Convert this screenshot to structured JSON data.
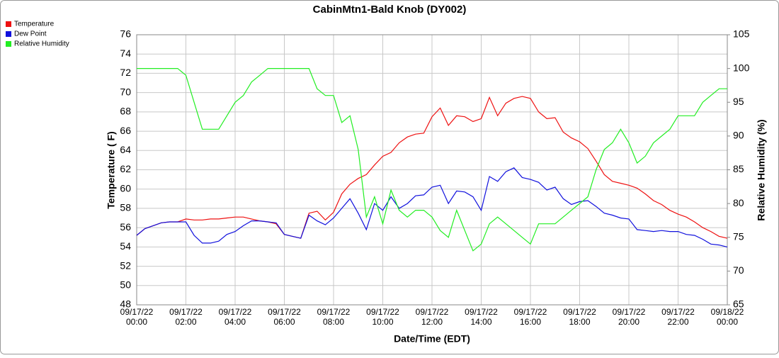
{
  "chart_data": {
    "type": "line",
    "title": "CabinMtn1-Bald Knob (DY002)",
    "x_label": "Date/Time (EDT)",
    "y_label": "Temperature ( F)",
    "y2_label": "Relative Humidity (%)",
    "x": [
      0,
      20,
      40,
      60,
      80,
      100,
      120,
      140,
      160,
      180,
      200,
      220,
      240,
      260,
      280,
      300,
      320,
      340,
      360,
      380,
      400,
      420,
      440,
      460,
      480,
      500,
      520,
      540,
      560,
      580,
      600,
      620,
      640,
      660,
      680,
      700,
      720,
      740,
      760,
      780,
      800,
      820,
      840,
      860,
      880,
      900,
      920,
      940,
      960,
      980,
      1000,
      1020,
      1040,
      1060,
      1080,
      1100,
      1120,
      1140,
      1160,
      1180,
      1200,
      1220,
      1240,
      1260,
      1280,
      1300,
      1320,
      1340,
      1360,
      1380,
      1400,
      1420,
      1440
    ],
    "xlim": [
      0,
      1440
    ],
    "xticks": [
      {
        "value": 0,
        "label": "09/17/22 00:00"
      },
      {
        "value": 120,
        "label": "09/17/22 02:00"
      },
      {
        "value": 240,
        "label": "09/17/22 04:00"
      },
      {
        "value": 360,
        "label": "09/17/22 06:00"
      },
      {
        "value": 480,
        "label": "09/17/22 08:00"
      },
      {
        "value": 600,
        "label": "09/17/22 10:00"
      },
      {
        "value": 720,
        "label": "09/17/22 12:00"
      },
      {
        "value": 840,
        "label": "09/17/22 14:00"
      },
      {
        "value": 960,
        "label": "09/17/22 16:00"
      },
      {
        "value": 1080,
        "label": "09/17/22 18:00"
      },
      {
        "value": 1200,
        "label": "09/17/22 20:00"
      },
      {
        "value": 1320,
        "label": "09/17/22 22:00"
      },
      {
        "value": 1440,
        "label": "09/18/22 00:00"
      }
    ],
    "ylim": [
      48,
      76
    ],
    "yticks": [
      48,
      50,
      52,
      54,
      56,
      58,
      60,
      62,
      64,
      66,
      68,
      70,
      72,
      74,
      76
    ],
    "y2lim": [
      65,
      105
    ],
    "y2ticks": [
      65,
      70,
      75,
      80,
      85,
      90,
      95,
      100,
      105
    ],
    "grid": true,
    "legend": "top-left",
    "series": [
      {
        "name": "Temperature",
        "color": "#ee1111",
        "values": [
          55.2,
          55.9,
          56.2,
          56.5,
          56.6,
          56.6,
          56.9,
          56.8,
          56.8,
          56.9,
          56.9,
          57.0,
          57.1,
          57.1,
          56.9,
          56.7,
          56.6,
          56.4,
          55.3,
          55.1,
          54.9,
          57.5,
          57.7,
          56.8,
          57.6,
          59.5,
          60.5,
          61.1,
          61.5,
          62.5,
          63.4,
          63.8,
          64.8,
          65.4,
          65.7,
          65.8,
          67.5,
          68.4,
          66.6,
          67.6,
          67.5,
          67.0,
          67.3,
          69.5,
          67.6,
          68.9,
          69.4,
          69.6,
          69.4,
          68.0,
          67.3,
          67.4,
          65.9,
          65.3,
          64.9,
          64.2,
          62.9,
          61.5,
          60.8,
          60.6,
          60.4,
          60.1,
          59.5,
          58.8,
          58.4,
          57.8,
          57.4,
          57.1,
          56.6,
          56.0,
          55.6,
          55.1,
          54.9
        ]
      },
      {
        "name": "Dew Point",
        "color": "#1111dd",
        "values": [
          55.2,
          55.9,
          56.2,
          56.5,
          56.6,
          56.6,
          56.6,
          55.2,
          54.4,
          54.4,
          54.6,
          55.3,
          55.6,
          56.2,
          56.7,
          56.7,
          56.6,
          56.5,
          55.3,
          55.1,
          54.9,
          57.3,
          56.7,
          56.3,
          57.0,
          58.0,
          59.0,
          57.5,
          55.8,
          58.5,
          57.8,
          59.2,
          58.0,
          58.5,
          59.3,
          59.4,
          60.2,
          60.4,
          58.5,
          59.8,
          59.7,
          59.2,
          57.8,
          61.3,
          60.8,
          61.8,
          62.2,
          61.2,
          61.0,
          60.7,
          59.9,
          60.2,
          59.0,
          58.4,
          58.7,
          58.8,
          58.2,
          57.5,
          57.3,
          57.0,
          56.9,
          55.8,
          55.7,
          55.6,
          55.7,
          55.6,
          55.6,
          55.3,
          55.2,
          54.8,
          54.3,
          54.2,
          54.0
        ]
      },
      {
        "name": "Relative Humidity",
        "color": "#22ee22",
        "axis": "y2",
        "values": [
          100,
          100,
          100,
          100,
          100,
          100,
          99,
          95,
          91,
          91,
          91,
          93,
          95,
          96,
          98,
          99,
          100,
          100,
          100,
          100,
          100,
          100,
          97,
          96,
          96,
          92,
          93,
          88,
          78,
          81,
          77,
          82,
          79,
          78,
          79,
          79,
          78,
          76,
          75,
          79,
          76,
          73,
          74,
          77,
          78,
          77,
          76,
          75,
          74,
          77,
          77,
          77,
          78,
          79,
          80,
          81,
          85,
          88,
          89,
          91,
          89,
          86,
          87,
          89,
          90,
          91,
          93,
          93,
          93,
          95,
          96,
          97,
          97
        ]
      }
    ]
  }
}
